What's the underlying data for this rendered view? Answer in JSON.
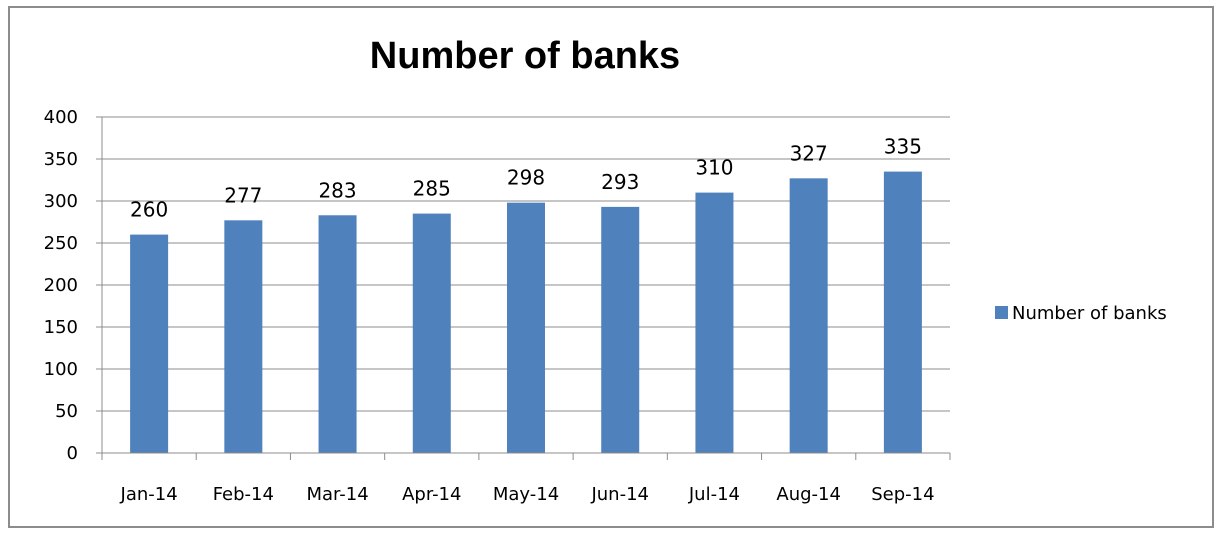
{
  "chart_data": {
    "type": "bar",
    "title": "Number of banks",
    "xlabel": "",
    "ylabel": "",
    "categories": [
      "Jan-14",
      "Feb-14",
      "Mar-14",
      "Apr-14",
      "May-14",
      "Jun-14",
      "Jul-14",
      "Aug-14",
      "Sep-14"
    ],
    "series": [
      {
        "name": "Number of banks",
        "values": [
          260,
          277,
          283,
          285,
          298,
          293,
          310,
          327,
          335
        ]
      }
    ],
    "ylim": [
      0,
      400
    ],
    "yticks": [
      0,
      50,
      100,
      150,
      200,
      250,
      300,
      350,
      400
    ],
    "grid": true,
    "legend": "right",
    "bar_color": "#4f81bd",
    "data_labels": true
  }
}
